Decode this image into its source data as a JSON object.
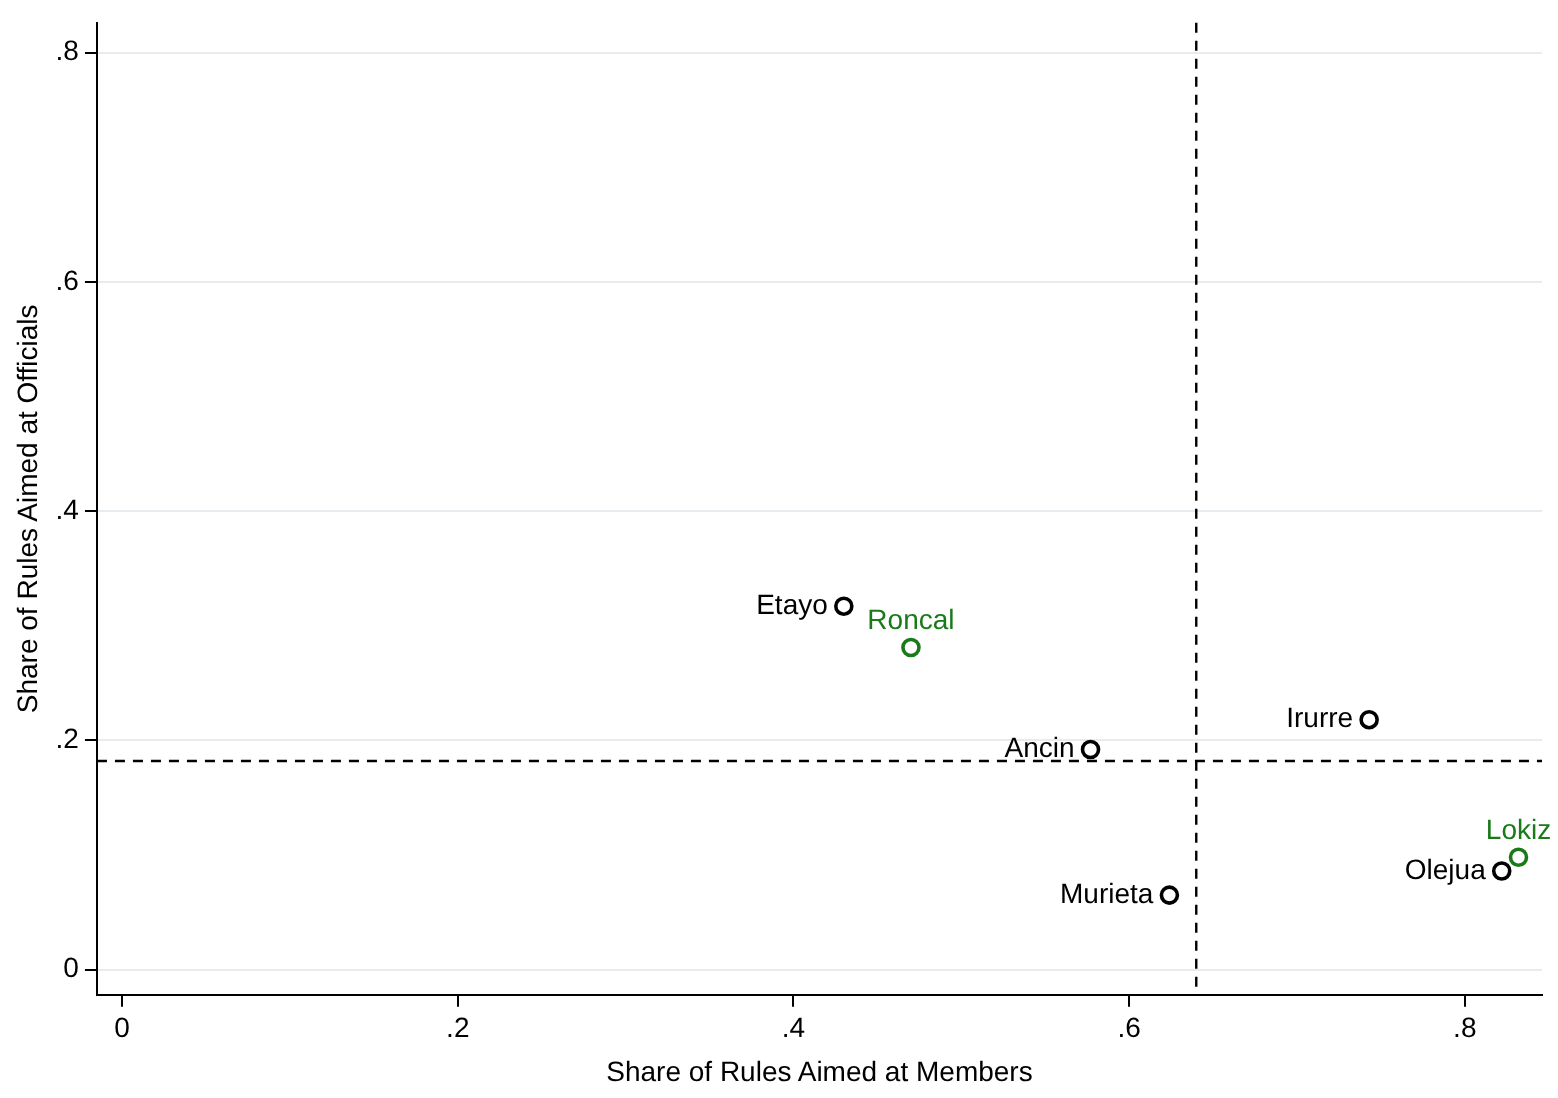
{
  "chart_data": {
    "type": "scatter",
    "xlabel": "Share of Rules Aimed at Members",
    "ylabel": "Share of Rules Aimed at Officials",
    "xlim": [
      -0.015,
      0.846
    ],
    "ylim": [
      -0.022,
      0.826
    ],
    "xticks": [
      {
        "value": 0,
        "label": "0"
      },
      {
        "value": 0.2,
        "label": ".2"
      },
      {
        "value": 0.4,
        "label": ".4"
      },
      {
        "value": 0.6,
        "label": ".6"
      },
      {
        "value": 0.8,
        "label": ".8"
      }
    ],
    "yticks": [
      {
        "value": 0,
        "label": "0"
      },
      {
        "value": 0.2,
        "label": ".2"
      },
      {
        "value": 0.4,
        "label": ".4"
      },
      {
        "value": 0.6,
        "label": ".6"
      },
      {
        "value": 0.8,
        "label": ".8"
      }
    ],
    "grid": "y",
    "marker": "circle",
    "legend": false,
    "series": [
      {
        "color": "#000000",
        "x": [
          0.43,
          0.577,
          0.743,
          0.624,
          0.822
        ],
        "values": [
          0.317,
          0.192,
          0.218,
          0.065,
          0.086
        ],
        "value_labels": [
          "Etayo",
          "Ancin",
          "Irurre",
          "Murieta",
          "Olejua"
        ]
      },
      {
        "color": "#1a7a1a",
        "x": [
          0.47,
          0.832
        ],
        "values": [
          0.281,
          0.098
        ],
        "value_labels": [
          "Roncal",
          "Lokiz"
        ]
      }
    ],
    "ref_lines": [
      {
        "axis": "x",
        "value": 0.64,
        "line_style": "dashed",
        "color": "#000000"
      },
      {
        "axis": "y",
        "value": 0.182,
        "line_style": "dashed",
        "color": "#000000"
      }
    ]
  }
}
